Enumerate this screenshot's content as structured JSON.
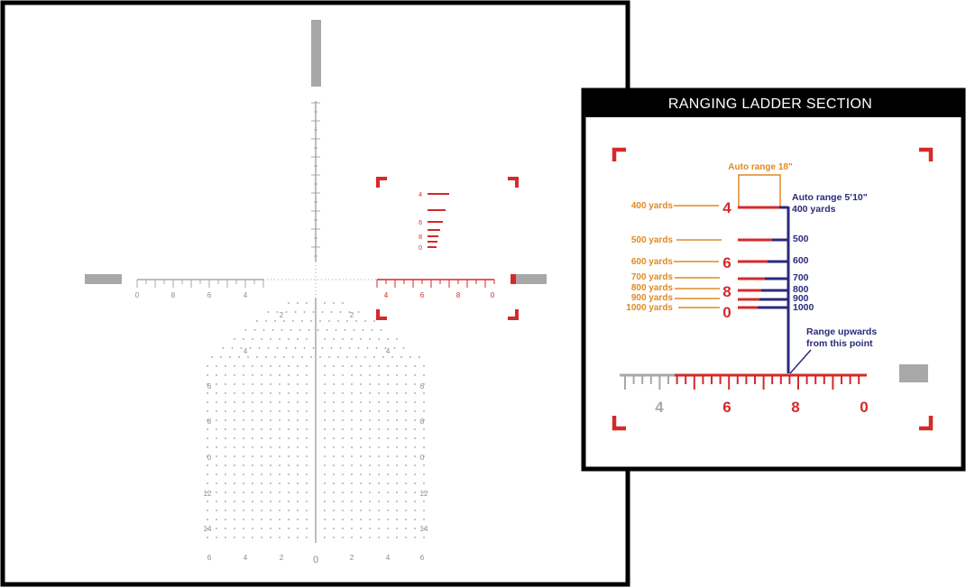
{
  "reticle": {
    "holdover_numbers": [
      "2",
      "4",
      "6",
      "8",
      "0",
      "12",
      "14"
    ],
    "holdover_bottom": [
      "6",
      "4",
      "2",
      "0",
      "2",
      "4",
      "6"
    ],
    "left_scale": [
      "0",
      "8",
      "6",
      "4"
    ],
    "right_scale": [
      "4",
      "6",
      "8",
      "0"
    ],
    "ladder_numbers": [
      "4",
      "6",
      "8",
      "0"
    ]
  },
  "inset": {
    "title": "RANGING LADDER SECTION",
    "auto_range_18": "Auto range 18\"",
    "auto_range_510": "Auto range 5’10\"",
    "yards_left": [
      "400 yards",
      "500 yards",
      "600 yards",
      "700 yards",
      "800 yards",
      "900 yards",
      "1000 yards"
    ],
    "ladder_big": [
      "4",
      "6",
      "8",
      "0"
    ],
    "right_labels": [
      "400 yards",
      "500",
      "600",
      "700",
      "800",
      "900",
      "1000"
    ],
    "range_note_line1": "Range upwards",
    "range_note_line2": "from this point",
    "scale": [
      "4",
      "6",
      "8",
      "0"
    ]
  },
  "colors": {
    "red": "#d42a2a",
    "gray": "#a8a8a8",
    "orange": "#e08a24",
    "navy": "#2b2a7c",
    "black": "#000000"
  }
}
